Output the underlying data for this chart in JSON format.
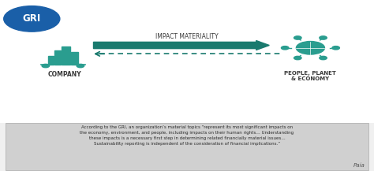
{
  "bg_color": "#f0f0f0",
  "top_bg_color": "#ffffff",
  "gri_circle_color": "#1a5fa8",
  "gri_text": "GRI",
  "teal_color": "#2a9d8f",
  "arrow_label": "IMPACT MATERIALITY",
  "company_label": "COMPANY",
  "people_label": "PEOPLE, PLANET\n& ECONOMY",
  "quote_text": "According to the GRI, an organization’s material topics “represent its most significant impacts on\nthe economy, environment, and people, including impacts on their human rights… Understanding\nthese impacts is a necessary first step in determining related financially material issues…\nSustainability reporting is independent of the consideration of financial implications.”",
  "paia_text": "Paía",
  "dark_teal": "#1a7a6e",
  "label_color": "#3a3a3a",
  "quote_box_color": "#d0d0d0"
}
